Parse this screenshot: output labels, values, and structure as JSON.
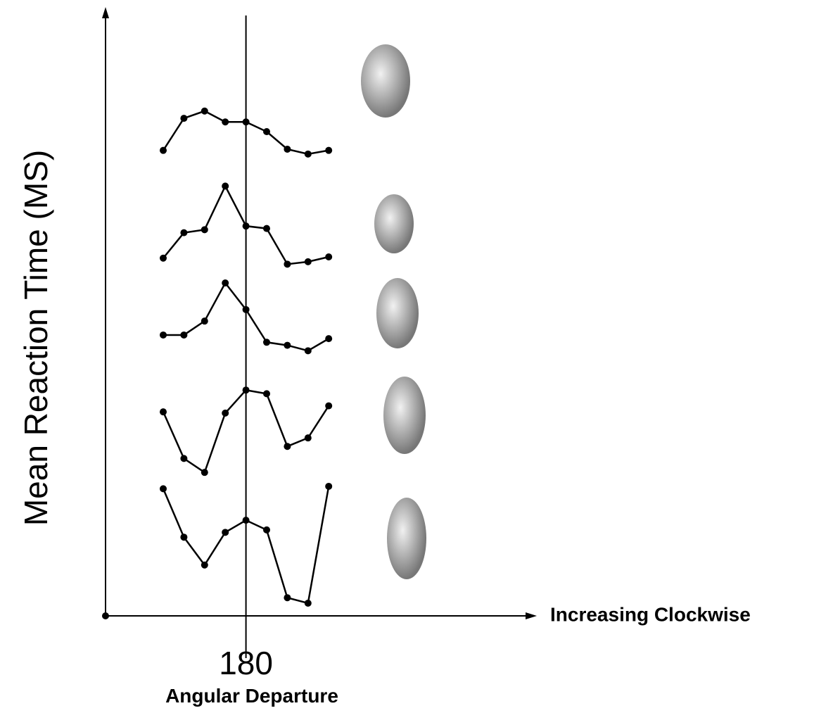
{
  "chart_data": {
    "type": "line",
    "y_label": "Mean Reaction Time (MS)",
    "x_arrow_label": "Increasing Clockwise",
    "x_label": "Angular Departure",
    "categories": [
      null,
      null,
      null,
      null,
      "180",
      null,
      null,
      null,
      null
    ],
    "ylim": [
      0,
      100
    ],
    "color": "#000000",
    "series": [
      {
        "values": [
          76.9,
          82.2,
          83.4,
          81.6,
          81.6,
          80.0,
          77.1,
          76.3,
          76.9
        ]
      },
      {
        "values": [
          59.1,
          63.3,
          63.8,
          71.0,
          64.4,
          64.0,
          58.1,
          58.5,
          59.3
        ]
      },
      {
        "values": [
          46.4,
          46.4,
          48.7,
          55.0,
          50.6,
          45.2,
          44.7,
          43.8,
          45.8
        ]
      },
      {
        "values": [
          33.7,
          26.0,
          23.7,
          33.5,
          37.3,
          36.7,
          28.0,
          29.4,
          34.7
        ]
      },
      {
        "values": [
          21.0,
          13.0,
          8.4,
          13.8,
          15.8,
          14.2,
          3.0,
          2.1,
          21.4
        ]
      }
    ]
  }
}
